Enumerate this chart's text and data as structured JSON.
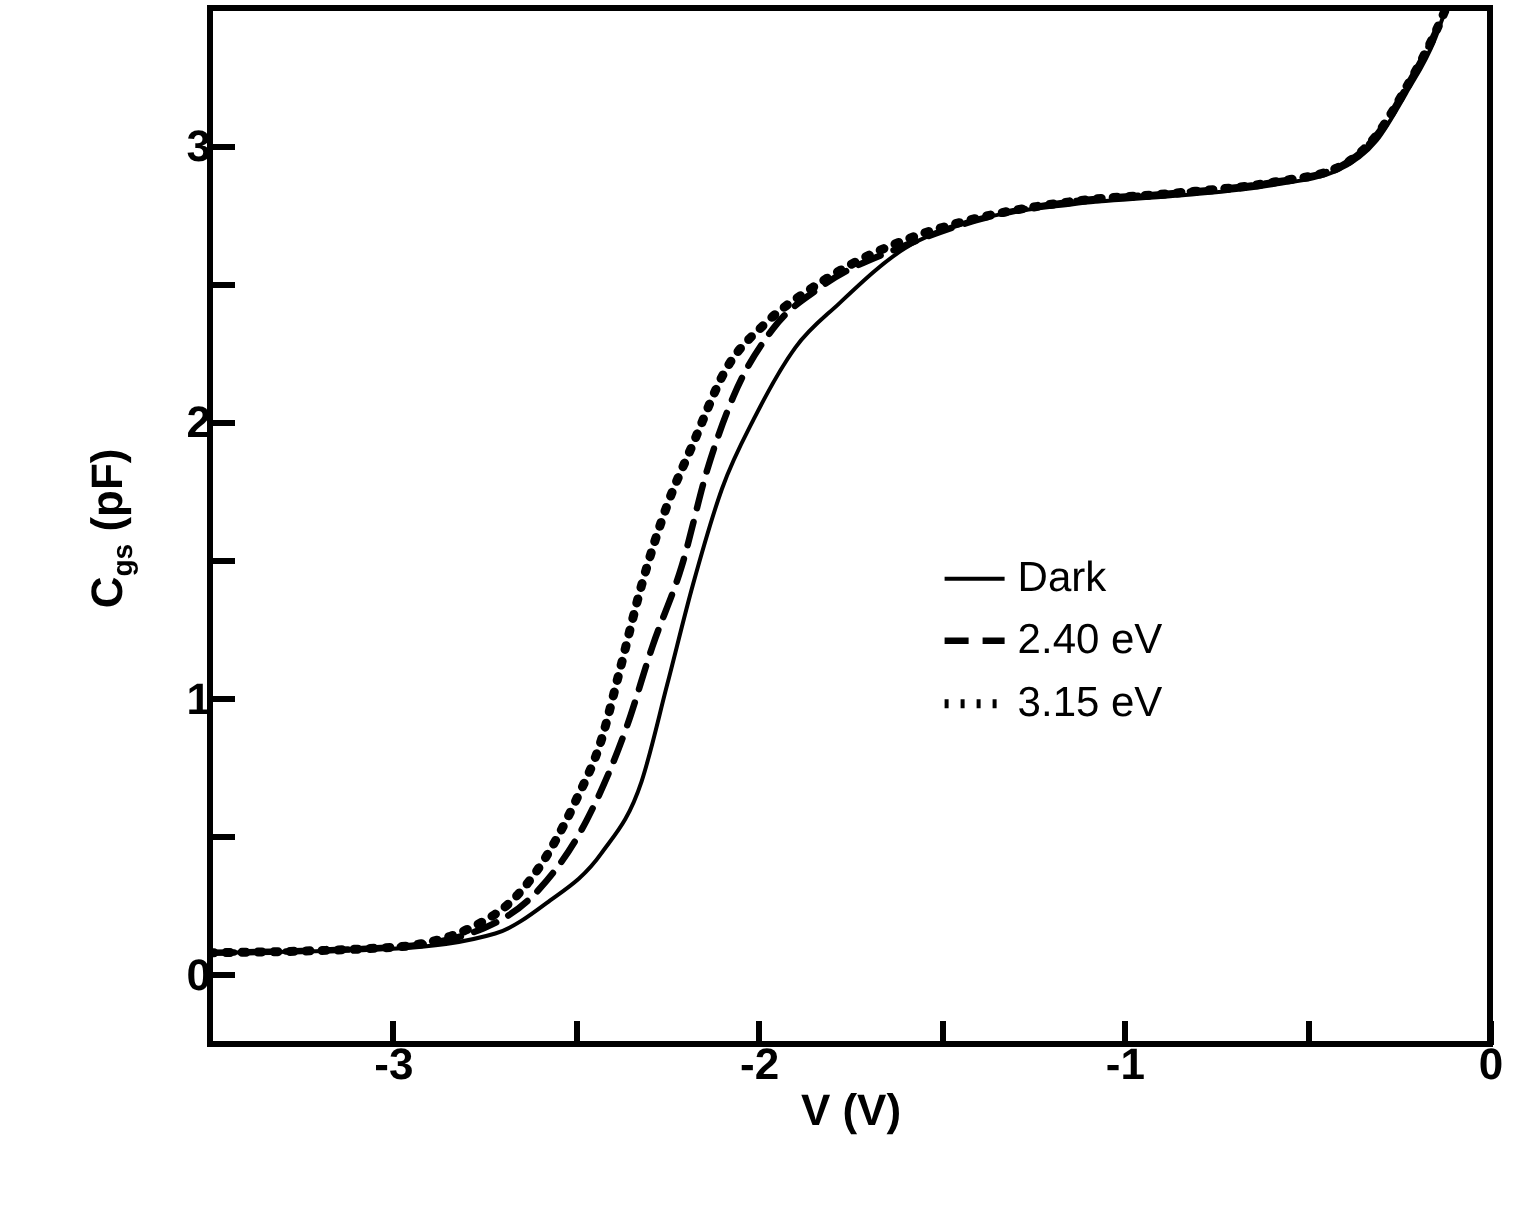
{
  "chart_data": {
    "type": "line",
    "xlabel": "V (V)",
    "ylabel": "C$_{gs}$ (pF)",
    "legend": "right",
    "grid": false,
    "xlim": [
      -3.5,
      0
    ],
    "xticks": [
      -3,
      {
        "value": -2.5,
        "label": null
      },
      -2,
      {
        "value": -1.5,
        "label": null
      },
      -1,
      {
        "value": -0.5,
        "label": null
      },
      0
    ],
    "ylim": [
      -0.25,
      3.5
    ],
    "yticks": [
      0,
      {
        "value": 0.5,
        "label": null
      },
      1,
      {
        "value": 1.5,
        "label": null
      },
      2,
      {
        "value": 2.5,
        "label": null
      },
      3
    ],
    "series": [
      {
        "name": "Dark",
        "color": "#000000",
        "line_style": "solid",
        "x": [
          -3.5,
          -3.0,
          -2.72,
          -2.58,
          -2.43,
          -2.32,
          -2.25,
          -2.18,
          -2.1,
          -2.01,
          -1.9,
          -1.78,
          -1.6,
          -1.41,
          -1.14,
          -0.86,
          -0.59,
          -0.42,
          -0.31,
          -0.23,
          -0.15,
          -0.12
        ],
        "values": [
          0.08,
          0.095,
          0.15,
          0.26,
          0.44,
          0.7,
          1.05,
          1.41,
          1.76,
          2.02,
          2.27,
          2.43,
          2.63,
          2.73,
          2.79,
          2.82,
          2.86,
          2.91,
          3.02,
          3.19,
          3.39,
          3.5
        ]
      },
      {
        "name": "2.40 eV",
        "color": "#000000",
        "line_style": "dashed",
        "x": [
          -3.5,
          -3.0,
          -2.75,
          -2.6,
          -2.47,
          -2.36,
          -2.29,
          -2.21,
          -2.14,
          -2.07,
          -1.96,
          -1.83,
          -1.6,
          -1.41,
          -1.14,
          -0.86,
          -0.59,
          -0.42,
          -0.31,
          -0.23,
          -0.15,
          -0.12
        ],
        "values": [
          0.08,
          0.1,
          0.17,
          0.31,
          0.56,
          0.9,
          1.19,
          1.48,
          1.83,
          2.09,
          2.34,
          2.49,
          2.64,
          2.73,
          2.8,
          2.83,
          2.87,
          2.92,
          3.04,
          3.21,
          3.41,
          3.5
        ]
      },
      {
        "name": "3.15 eV",
        "color": "#000000",
        "line_style": "dotted",
        "x": [
          -3.5,
          -3.0,
          -2.72,
          -2.61,
          -2.5,
          -2.43,
          -2.38,
          -2.32,
          -2.25,
          -2.18,
          -2.09,
          -1.98,
          -1.85,
          -1.75,
          -1.6,
          -1.4,
          -1.14,
          -0.86,
          -0.59,
          -0.42,
          -0.31,
          -0.23,
          -0.15,
          -0.12
        ],
        "values": [
          0.08,
          0.1,
          0.22,
          0.37,
          0.63,
          0.85,
          1.1,
          1.41,
          1.7,
          1.92,
          2.19,
          2.36,
          2.49,
          2.57,
          2.66,
          2.74,
          2.8,
          2.83,
          2.87,
          2.92,
          3.04,
          3.21,
          3.41,
          3.5
        ]
      }
    ]
  }
}
